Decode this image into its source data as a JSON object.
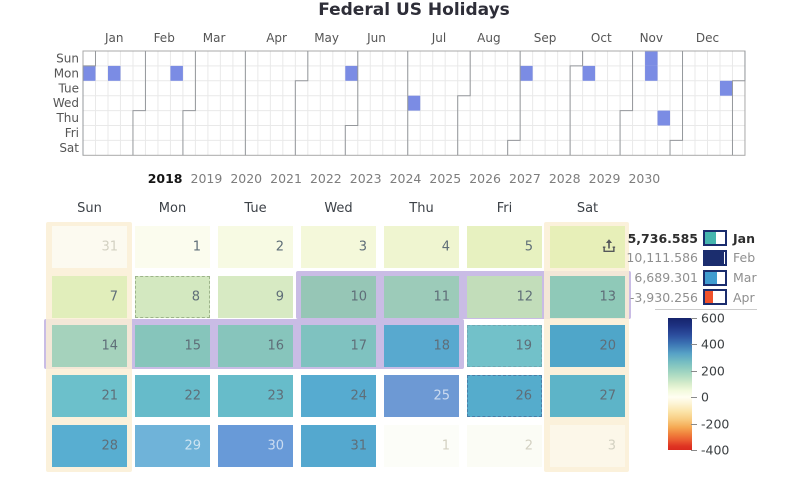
{
  "title": "Federal US Holidays",
  "top_chart": {
    "day_labels": [
      "Sun",
      "Mon",
      "Tue",
      "Wed",
      "Thu",
      "Fri",
      "Sat"
    ],
    "holiday_color": "#7b8ce4",
    "months": [
      {
        "label": "",
        "startCol": 0,
        "endCol": 0,
        "endDow": 0
      },
      {
        "label": "Jan",
        "startCol": 0,
        "endCol": 4,
        "endDow": 3
      },
      {
        "label": "Feb",
        "startCol": 4,
        "endCol": 8,
        "endDow": 3
      },
      {
        "label": "Mar",
        "startCol": 8,
        "endCol": 12,
        "endDow": 6
      },
      {
        "label": "Apr",
        "startCol": 13,
        "endCol": 17,
        "endDow": 1
      },
      {
        "label": "May",
        "startCol": 17,
        "endCol": 21,
        "endDow": 4
      },
      {
        "label": "Jun",
        "startCol": 21,
        "endCol": 25,
        "endDow": 6
      },
      {
        "label": "Jul",
        "startCol": 26,
        "endCol": 30,
        "endDow": 2
      },
      {
        "label": "Aug",
        "startCol": 30,
        "endCol": 34,
        "endDow": 5
      },
      {
        "label": "Sep",
        "startCol": 34,
        "endCol": 39,
        "endDow": 0
      },
      {
        "label": "Oct",
        "startCol": 39,
        "endCol": 43,
        "endDow": 3
      },
      {
        "label": "Nov",
        "startCol": 43,
        "endCol": 47,
        "endDow": 5
      },
      {
        "label": "Dec",
        "startCol": 47,
        "endCol": 52,
        "endDow": 1
      }
    ],
    "holiday_cells": [
      {
        "col": 0,
        "row": 1
      },
      {
        "col": 2,
        "row": 1
      },
      {
        "col": 7,
        "row": 1
      },
      {
        "col": 21,
        "row": 1
      },
      {
        "col": 26,
        "row": 3
      },
      {
        "col": 35,
        "row": 1
      },
      {
        "col": 40,
        "row": 1
      },
      {
        "col": 45,
        "row": 0
      },
      {
        "col": 45,
        "row": 1
      },
      {
        "col": 46,
        "row": 4
      },
      {
        "col": 51,
        "row": 2
      }
    ]
  },
  "year_selector": {
    "selected": "2018",
    "years": [
      "2018",
      "2019",
      "2020",
      "2021",
      "2022",
      "2023",
      "2024",
      "2025",
      "2026",
      "2027",
      "2028",
      "2029",
      "2030"
    ]
  },
  "calendar": {
    "day_headers": [
      "Sun",
      "Mon",
      "Tue",
      "Wed",
      "Thu",
      "Fri",
      "Sat"
    ],
    "band_colors": {
      "weekend": "rgba(250,239,213,0.85)",
      "selection": "#c9bce5"
    },
    "weeks": [
      [
        {
          "d": "31",
          "fill": "#fcfaf0",
          "dim": "light"
        },
        {
          "d": "1",
          "fill": "#fbfcee"
        },
        {
          "d": "2",
          "fill": "#f7fae3"
        },
        {
          "d": "3",
          "fill": "#f4f8da"
        },
        {
          "d": "4",
          "fill": "#eff5d0"
        },
        {
          "d": "5",
          "fill": "#e7f1c0"
        },
        {
          "icon": "upload",
          "fill": "#e7efb8"
        }
      ],
      [
        {
          "d": "7",
          "fill": "#e1eebb"
        },
        {
          "d": "8",
          "fill": "#d3e8c0",
          "dotted": "#9db48a"
        },
        {
          "d": "9",
          "fill": "#d7eac3"
        },
        {
          "d": "10",
          "fill": "#96c6b6"
        },
        {
          "d": "11",
          "fill": "#9ccbb9"
        },
        {
          "d": "12",
          "fill": "#c2ddba"
        },
        {
          "d": "13",
          "fill": "#8fc9b8"
        }
      ],
      [
        {
          "d": "14",
          "fill": "#a5d2bc"
        },
        {
          "d": "15",
          "fill": "#86c5bb"
        },
        {
          "d": "16",
          "fill": "#87c5bc"
        },
        {
          "d": "17",
          "fill": "#7fc2c0"
        },
        {
          "d": "18",
          "fill": "#58a9cf"
        },
        {
          "d": "19",
          "fill": "#72c1c9",
          "dotted": "#6fa9b4"
        },
        {
          "d": "20",
          "fill": "#4fa6c9"
        }
      ],
      [
        {
          "d": "21",
          "fill": "#6cc0cb"
        },
        {
          "d": "22",
          "fill": "#66bbca"
        },
        {
          "d": "23",
          "fill": "#67bcca"
        },
        {
          "d": "24",
          "fill": "#56abd0"
        },
        {
          "d": "25",
          "fill": "#6d99d4",
          "dim": "dark"
        },
        {
          "d": "26",
          "fill": "#55accc",
          "dotted": "#4a7ea8"
        },
        {
          "d": "27",
          "fill": "#5db4c8"
        }
      ],
      [
        {
          "d": "28",
          "fill": "#58aed1"
        },
        {
          "d": "29",
          "fill": "#6fb3d9",
          "dim": "dark"
        },
        {
          "d": "30",
          "fill": "#689ad8",
          "dim": "dark"
        },
        {
          "d": "31",
          "fill": "#54a8cf"
        },
        {
          "d": "1",
          "fill": "#fcfdf8",
          "dim": "light"
        },
        {
          "d": "2",
          "fill": "#fbfcf5",
          "dim": "light"
        },
        {
          "d": "3",
          "fill": "#fcf7e9",
          "dim": "light"
        }
      ]
    ]
  },
  "legend": {
    "items": [
      {
        "value": "5,736.585",
        "label": "Jan",
        "bold": true,
        "bar_color": "#45b5ae",
        "bar_width": "54%"
      },
      {
        "value": "10,111.586",
        "label": "Feb",
        "bold": false,
        "bar_color": "#1b2d6e",
        "bar_width": "96%"
      },
      {
        "value": "6,689.301",
        "label": "Mar",
        "bold": false,
        "bar_color": "#3f9cd0",
        "bar_width": "62%"
      },
      {
        "value": "-3,930.256",
        "label": "Apr",
        "bold": false,
        "bar_color": "#f0512b",
        "bar_width": "38%"
      }
    ]
  },
  "colorbar": {
    "ticks": [
      "600",
      "400",
      "200",
      "0",
      "-200",
      "-400"
    ],
    "gradient": [
      "#15236c 0%",
      "#1e3282 6%",
      "#2c4e9e 13%",
      "#3a70b2 19%",
      "#57a2c6 27%",
      "#74bcc2 33%",
      "#8fccc0 38%",
      "#b2ddc3 44%",
      "#d8edcc 50%",
      "#f3fadd 55%",
      "#fffef2 60%",
      "#fdf4d4 65%",
      "#fbe3a8 71%",
      "#f8cb80 77%",
      "#f5a852 83%",
      "#f0803c 88%",
      "#ea582f 93%",
      "#df3423 97%",
      "#da2a1e 100%"
    ]
  },
  "chart_data": {
    "type": "heatmap",
    "title": "Federal US Holidays",
    "year_view": {
      "year": 2018,
      "weekday_rows": [
        "Sun",
        "Mon",
        "Tue",
        "Wed",
        "Thu",
        "Fri",
        "Sat"
      ],
      "month_columns": [
        "Jan",
        "Feb",
        "Mar",
        "Apr",
        "May",
        "Jun",
        "Jul",
        "Aug",
        "Sep",
        "Oct",
        "Nov",
        "Dec"
      ],
      "highlighted_holidays": [
        "2018-01-01",
        "2018-01-15",
        "2018-02-19",
        "2018-05-28",
        "2018-07-04",
        "2018-09-03",
        "2018-11-11",
        "2018-11-12",
        "2018-11-22",
        "2018-12-25"
      ]
    },
    "month_view": {
      "month": "2018-01",
      "selected_range": [
        "2018-01-10",
        "2018-01-18"
      ],
      "estimated_day_values": {
        "2017-12-31": 0,
        "2018-01-01": 5,
        "2018-01-02": 20,
        "2018-01-03": 30,
        "2018-01-04": 45,
        "2018-01-05": 65,
        "2018-01-06": 75,
        "2018-01-07": 80,
        "2018-01-08": 110,
        "2018-01-09": 105,
        "2018-01-10": 205,
        "2018-01-11": 195,
        "2018-01-12": 125,
        "2018-01-13": 215,
        "2018-01-14": 175,
        "2018-01-15": 225,
        "2018-01-16": 225,
        "2018-01-17": 240,
        "2018-01-18": 330,
        "2018-01-19": 255,
        "2018-01-20": 345,
        "2018-01-21": 265,
        "2018-01-22": 280,
        "2018-01-23": 278,
        "2018-01-24": 320,
        "2018-01-25": null,
        "2018-01-26": 318,
        "2018-01-27": 295,
        "2018-01-28": 310,
        "2018-01-29": null,
        "2018-01-30": null,
        "2018-01-31": 325,
        "2018-02-01": 0,
        "2018-02-02": 3,
        "2018-02-03": -15
      }
    },
    "legend_values": {
      "Jan": 5736.585,
      "Feb": 10111.586,
      "Mar": 6689.301,
      "Apr": -3930.256
    },
    "colorbar": {
      "min": -400,
      "max": 600,
      "tick_values": [
        600,
        400,
        200,
        0,
        -200,
        -400
      ]
    }
  }
}
